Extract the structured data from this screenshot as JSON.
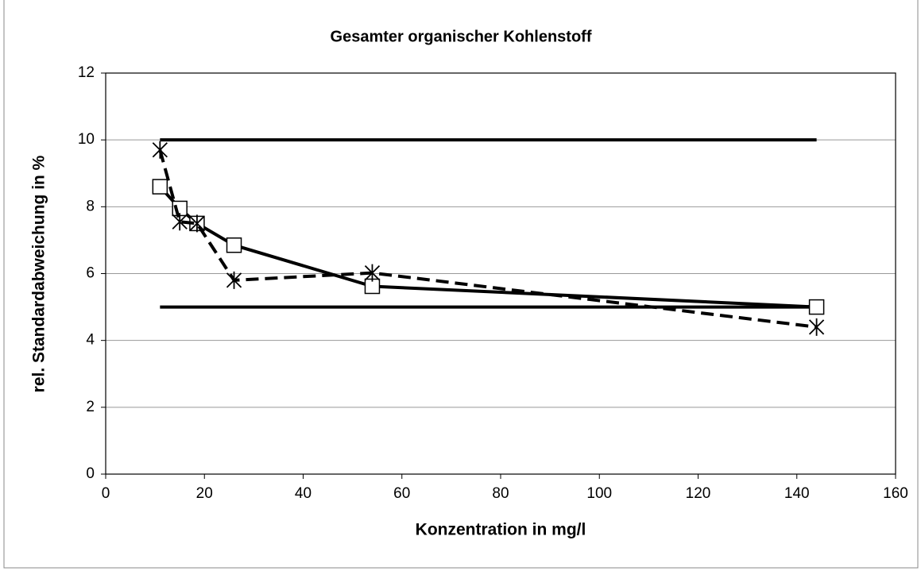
{
  "chart_data": {
    "type": "line",
    "title": "Gesamter organischer Kohlenstoff",
    "x_label": "Konzentration in mg/l",
    "y_label": "rel. Standardabweichung in %",
    "xlim": [
      0,
      160
    ],
    "xticks": [
      0,
      20,
      40,
      60,
      80,
      100,
      120,
      140,
      160
    ],
    "ylim": [
      0,
      12
    ],
    "yticks": [
      0,
      2,
      4,
      6,
      8,
      10,
      12
    ],
    "grid": true,
    "series": [
      {
        "color": "#000000",
        "marker": "none",
        "dash": false,
        "x": [
          11,
          144
        ],
        "values": [
          10,
          10
        ]
      },
      {
        "color": "#000000",
        "marker": "none",
        "dash": false,
        "x": [
          11,
          144
        ],
        "values": [
          5,
          5
        ]
      },
      {
        "color": "#000000",
        "marker": "square",
        "dash": false,
        "x": [
          11,
          15,
          18.5,
          26,
          54,
          144
        ],
        "values": [
          8.6,
          7.95,
          7.5,
          6.85,
          5.62,
          5.0
        ]
      },
      {
        "color": "#000000",
        "marker": "star",
        "dash": true,
        "x": [
          11,
          15,
          18.5,
          26,
          54,
          144
        ],
        "values": [
          9.7,
          7.55,
          7.5,
          5.8,
          6.02,
          4.4
        ]
      }
    ]
  }
}
